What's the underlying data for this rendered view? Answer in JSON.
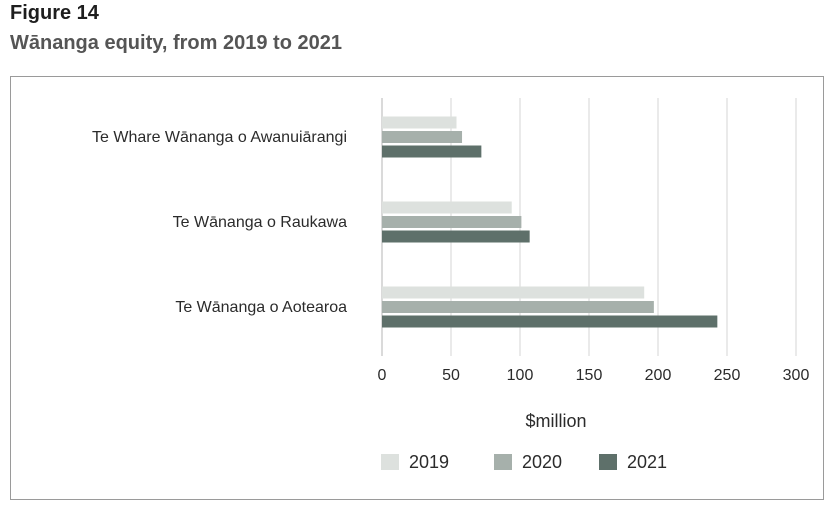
{
  "figure": {
    "label": "Figure 14",
    "title": "Wānanga equity, from 2019 to 2021"
  },
  "chart_data": {
    "type": "bar",
    "orientation": "horizontal",
    "categories": [
      "Te Whare Wānanga o Awanuiārangi",
      "Te Wānanga o Raukawa",
      "Te Wānanga o Aotearoa"
    ],
    "series": [
      {
        "name": "2019",
        "values": [
          54,
          94,
          190
        ],
        "color": "#dde1de"
      },
      {
        "name": "2020",
        "values": [
          58,
          101,
          197
        ],
        "color": "#a6b0ab"
      },
      {
        "name": "2021",
        "values": [
          72,
          107,
          243
        ],
        "color": "#5e706a"
      }
    ],
    "xlabel": "$million",
    "ylabel": "",
    "xlim": [
      0,
      300
    ],
    "xticks": [
      0,
      50,
      100,
      150,
      200,
      250,
      300
    ],
    "grid": "vertical",
    "legend": "bottom"
  }
}
